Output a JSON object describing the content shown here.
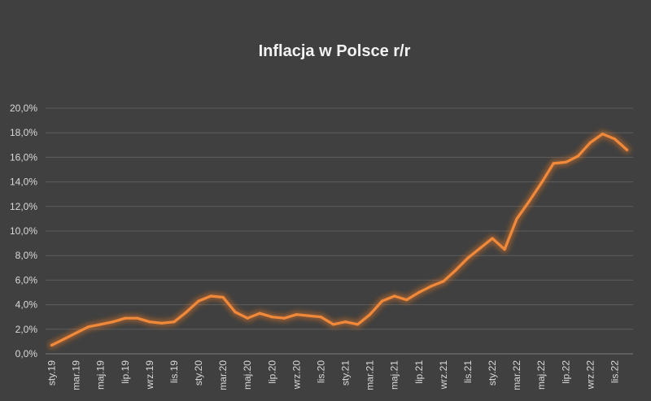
{
  "chart_data": {
    "type": "line",
    "title": "Inflacja w Polsce r/r",
    "xlabel": "",
    "ylabel": "",
    "ylim": [
      0,
      20
    ],
    "y_ticks": [
      "0,0%",
      "2,0%",
      "4,0%",
      "6,0%",
      "8,0%",
      "10,0%",
      "12,0%",
      "14,0%",
      "16,0%",
      "18,0%",
      "20,0%"
    ],
    "x": [
      "sty.19",
      "lut.19",
      "mar.19",
      "kwi.19",
      "maj.19",
      "cze.19",
      "lip.19",
      "sie.19",
      "wrz.19",
      "paź.19",
      "lis.19",
      "gru.19",
      "sty.20",
      "lut.20",
      "mar.20",
      "kwi.20",
      "maj.20",
      "cze.20",
      "lip.20",
      "sie.20",
      "wrz.20",
      "paź.20",
      "lis.20",
      "gru.20",
      "sty.21",
      "lut.21",
      "mar.21",
      "kwi.21",
      "maj.21",
      "cze.21",
      "lip.21",
      "sie.21",
      "wrz.21",
      "paź.21",
      "lis.21",
      "gru.21",
      "sty.22",
      "lut.22",
      "mar.22",
      "kwi.22",
      "maj.22",
      "cze.22",
      "lip.22",
      "sie.22",
      "wrz.22",
      "paź.22",
      "lis.22",
      "gru.22"
    ],
    "x_tick_labels": [
      "sty.19",
      "mar.19",
      "maj.19",
      "lip.19",
      "wrz.19",
      "lis.19",
      "sty.20",
      "mar.20",
      "maj.20",
      "lip.20",
      "wrz.20",
      "lis.20",
      "sty.21",
      "mar.21",
      "maj.21",
      "lip.21",
      "wrz.21",
      "lis.21",
      "sty.22",
      "mar.22",
      "maj.22",
      "lip.22",
      "wrz.22",
      "lis.22"
    ],
    "series": [
      {
        "color": "#f08a3a",
        "values": [
          0.7,
          1.2,
          1.7,
          2.2,
          2.4,
          2.6,
          2.9,
          2.9,
          2.6,
          2.5,
          2.6,
          3.4,
          4.3,
          4.7,
          4.6,
          3.4,
          2.9,
          3.3,
          3.0,
          2.9,
          3.2,
          3.1,
          3.0,
          2.4,
          2.6,
          2.4,
          3.2,
          4.3,
          4.7,
          4.4,
          5.0,
          5.5,
          5.9,
          6.8,
          7.8,
          8.6,
          9.4,
          8.5,
          11.0,
          12.4,
          13.9,
          15.5,
          15.6,
          16.1,
          17.2,
          17.9,
          17.5,
          16.6
        ]
      }
    ],
    "grid": true,
    "legend": "none"
  }
}
